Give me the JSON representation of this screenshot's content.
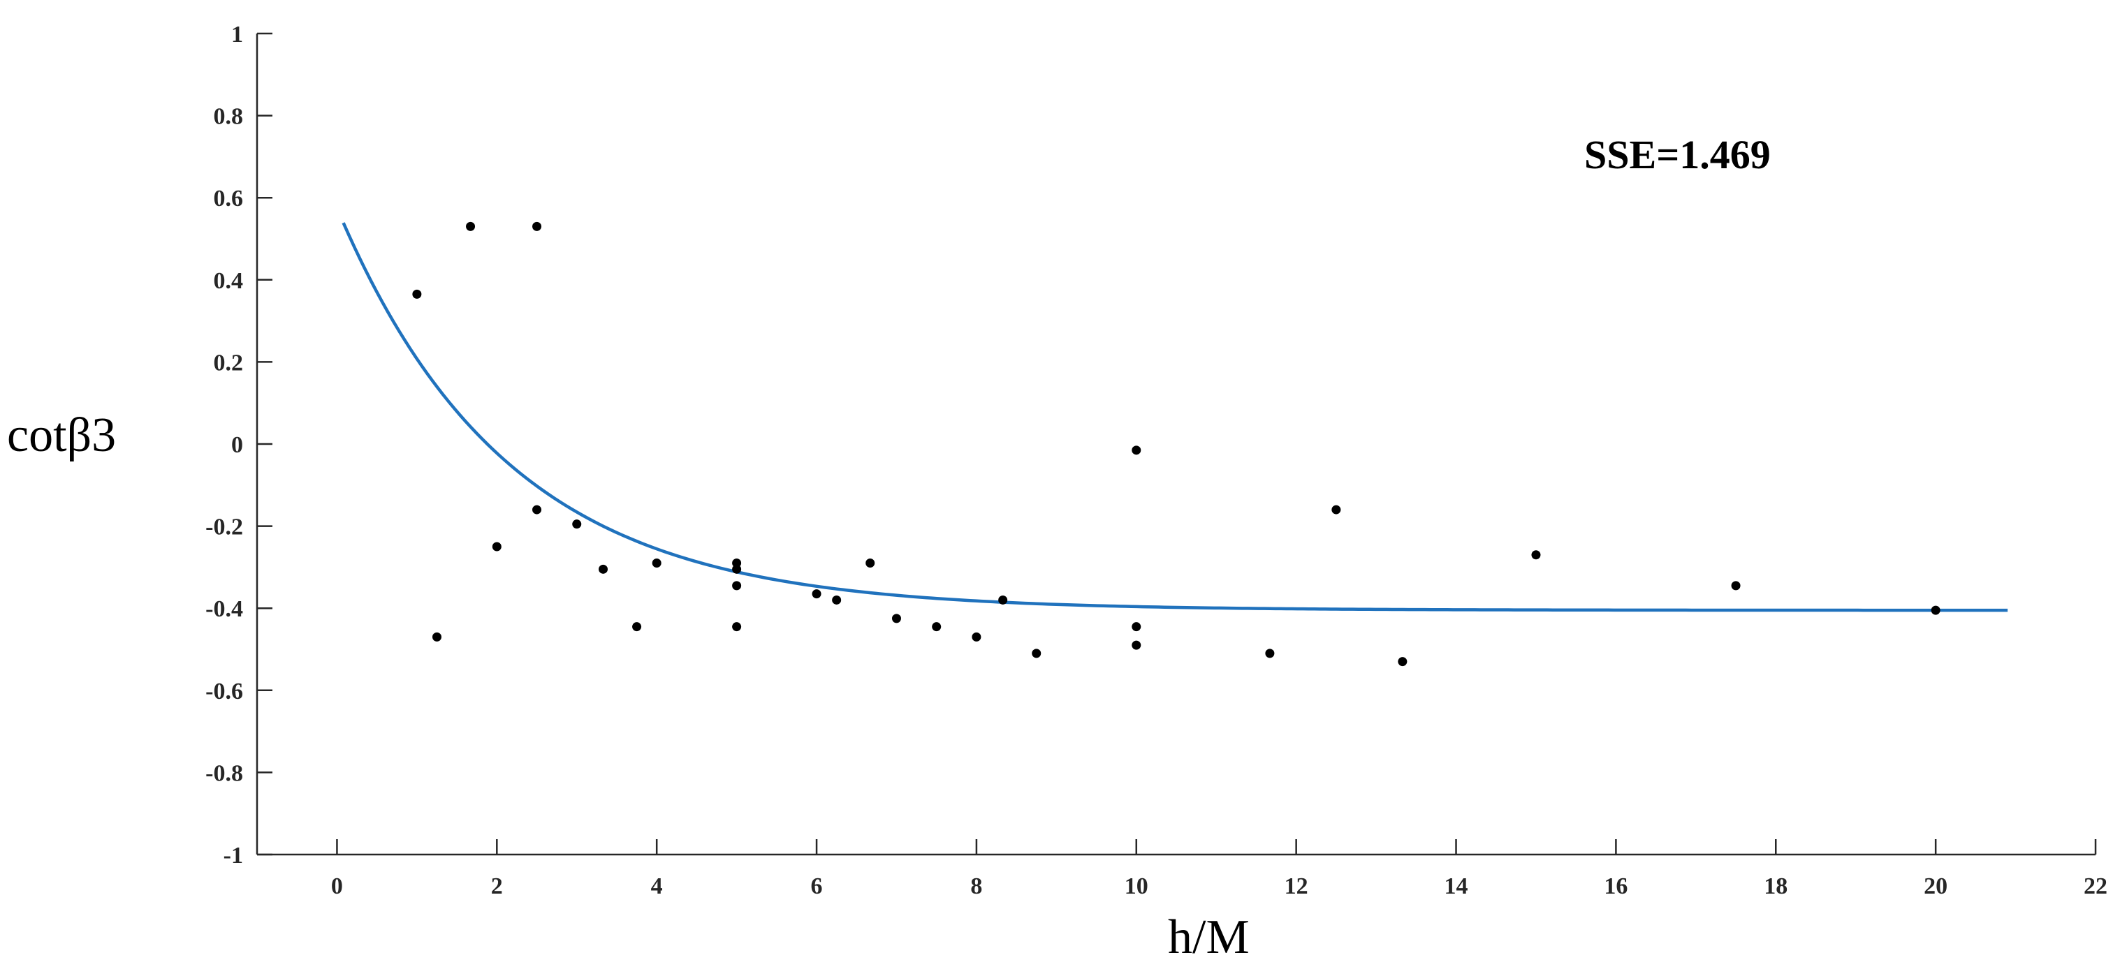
{
  "chart_data": {
    "type": "scatter",
    "title": "",
    "xlabel": "h/M",
    "ylabel": "cotβ3",
    "xlim": [
      -1,
      22
    ],
    "ylim": [
      -1,
      1
    ],
    "xticks": [
      0,
      2,
      4,
      6,
      8,
      10,
      12,
      14,
      16,
      18,
      20,
      22
    ],
    "yticks": [
      -1,
      -0.8,
      -0.6,
      -0.4,
      -0.2,
      0,
      0.2,
      0.4,
      0.6,
      0.8,
      1
    ],
    "xtick_labels": [
      "0",
      "2",
      "4",
      "6",
      "8",
      "10",
      "12",
      "14",
      "16",
      "18",
      "20",
      "22"
    ],
    "ytick_labels": [
      "-1",
      "-0.8",
      "-0.6",
      "-0.4",
      "-0.2",
      "0",
      "0.2",
      "0.4",
      "0.6",
      "0.8",
      "1"
    ],
    "grid": false,
    "legend": "none",
    "annotation": "SSE=1.469",
    "points_color": "#000000",
    "fit_color": "#2072bd",
    "points": [
      [
        1.0,
        0.365
      ],
      [
        1.25,
        -0.47
      ],
      [
        1.67,
        0.53
      ],
      [
        2.0,
        -0.25
      ],
      [
        2.5,
        0.53
      ],
      [
        2.5,
        -0.16
      ],
      [
        3.0,
        -0.195
      ],
      [
        3.33,
        -0.305
      ],
      [
        3.75,
        -0.445
      ],
      [
        4.0,
        -0.29
      ],
      [
        5.0,
        -0.29
      ],
      [
        5.0,
        -0.305
      ],
      [
        5.0,
        -0.345
      ],
      [
        5.0,
        -0.445
      ],
      [
        6.0,
        -0.365
      ],
      [
        6.25,
        -0.38
      ],
      [
        6.67,
        -0.29
      ],
      [
        7.0,
        -0.425
      ],
      [
        7.5,
        -0.445
      ],
      [
        8.0,
        -0.47
      ],
      [
        8.33,
        -0.38
      ],
      [
        8.75,
        -0.51
      ],
      [
        10.0,
        -0.015
      ],
      [
        10.0,
        -0.445
      ],
      [
        10.0,
        -0.49
      ],
      [
        11.67,
        -0.51
      ],
      [
        12.5,
        -0.16
      ],
      [
        13.33,
        -0.53
      ],
      [
        15.0,
        -0.27
      ],
      [
        17.5,
        -0.345
      ],
      [
        20.0,
        -0.405
      ]
    ],
    "fit_curve": {
      "x_start": 0.08,
      "x_end": 20.9,
      "asymptote": -0.405,
      "amplitude": 0.98,
      "decay": 0.47
    }
  }
}
